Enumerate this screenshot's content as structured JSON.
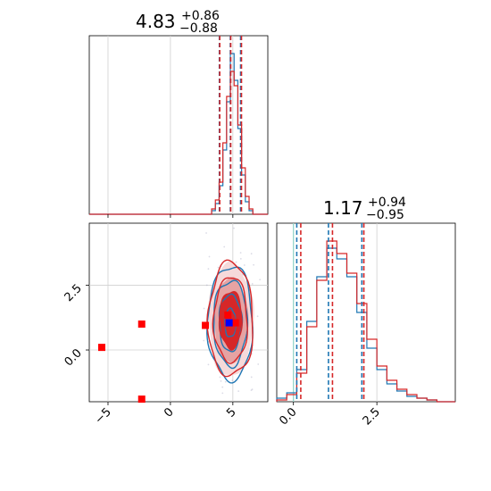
{
  "chart_data": [
    {
      "type": "step-histogram",
      "panel": "marginal-param-1",
      "title": {
        "value": "4.83",
        "plus": "+0.86",
        "minus": "−0.88"
      },
      "xlim": [
        -6.5,
        7.8
      ],
      "x_ticks": [
        -5,
        0,
        5
      ],
      "grid": true,
      "bin_edges": [
        3.3,
        3.6,
        3.9,
        4.2,
        4.5,
        4.8,
        5.1,
        5.4,
        5.7,
        6.0,
        6.3,
        6.6
      ],
      "series": [
        {
          "color": "#1f77b4",
          "values": [
            0.02,
            0.06,
            0.16,
            0.36,
            0.63,
            0.9,
            0.75,
            0.48,
            0.22,
            0.07,
            0.02
          ]
        },
        {
          "color": "#d62728",
          "values": [
            0.03,
            0.08,
            0.18,
            0.4,
            0.66,
            0.8,
            0.72,
            0.5,
            0.26,
            0.1,
            0.03
          ]
        }
      ],
      "quantile_lines": [
        {
          "color": "#1f77b4",
          "values": [
            3.92,
            4.8,
            5.62
          ]
        },
        {
          "color": "#d62728",
          "values": [
            3.95,
            4.83,
            5.69
          ]
        }
      ]
    },
    {
      "type": "step-histogram",
      "panel": "marginal-param-2",
      "title": {
        "value": "1.17",
        "plus": "+0.94",
        "minus": "−0.95"
      },
      "xlim": [
        -0.5,
        4.85
      ],
      "x_ticks": [
        "0.0",
        "2.5"
      ],
      "x_tick_values": [
        0,
        2.5
      ],
      "grid": true,
      "bin_edges": [
        -0.5,
        -0.2,
        0.1,
        0.4,
        0.7,
        1.0,
        1.3,
        1.6,
        1.9,
        2.2,
        2.5,
        2.8,
        3.1,
        3.4,
        3.7,
        4.0,
        4.3,
        4.6
      ],
      "series": [
        {
          "color": "#1f77b4",
          "values": [
            0.02,
            0.05,
            0.18,
            0.45,
            0.7,
            0.86,
            0.8,
            0.7,
            0.5,
            0.3,
            0.18,
            0.1,
            0.06,
            0.03,
            0.02,
            0.01,
            0.0
          ]
        },
        {
          "color": "#d62728",
          "values": [
            0.01,
            0.04,
            0.16,
            0.42,
            0.68,
            0.9,
            0.83,
            0.72,
            0.55,
            0.35,
            0.2,
            0.12,
            0.07,
            0.04,
            0.02,
            0.01,
            0.0
          ]
        }
      ],
      "quantile_lines": [
        {
          "color": "#1f77b4",
          "values": [
            0.1,
            1.05,
            2.05
          ]
        },
        {
          "color": "#d62728",
          "values": [
            0.22,
            1.17,
            2.11
          ]
        }
      ],
      "reference_line": {
        "color": "#8fd4c8",
        "value": 0.0
      }
    },
    {
      "type": "contour-2d",
      "panel": "joint-param-1-vs-param-2",
      "xlim": [
        -6.5,
        7.8
      ],
      "ylim": [
        -2.0,
        4.9
      ],
      "x_ticks": [
        -5,
        0,
        5
      ],
      "y_ticks": [
        "0.0",
        "2.5"
      ],
      "y_tick_values": [
        0,
        2.5
      ],
      "grid": true,
      "center": {
        "x": 4.83,
        "y": 1.17
      },
      "contour_sigmas": {
        "x": [
          0.45,
          0.9,
          1.35,
          1.8
        ],
        "y": [
          0.55,
          1.1,
          1.65,
          2.2
        ]
      },
      "series": [
        {
          "color": "#1f77b4",
          "center": {
            "x": 4.8,
            "y": 1.05
          }
        },
        {
          "color": "#d62728",
          "center": {
            "x": 4.83,
            "y": 1.17
          }
        }
      ],
      "fill_colors": [
        "#e6a3a3",
        "#d62728"
      ],
      "markers": [
        {
          "x": -5.5,
          "y": 0.1,
          "color": "#ff0000"
        },
        {
          "x": -2.3,
          "y": 1.0,
          "color": "#ff0000"
        },
        {
          "x": -2.3,
          "y": -1.9,
          "color": "#ff0000"
        },
        {
          "x": 2.8,
          "y": 0.95,
          "color": "#ff0000"
        },
        {
          "x": 4.6,
          "y": 1.35,
          "color": "#ff0000"
        },
        {
          "x": 5.2,
          "y": 1.05,
          "color": "#ff0000"
        },
        {
          "x": 4.7,
          "y": 1.05,
          "color": "#0000ff"
        }
      ]
    }
  ]
}
